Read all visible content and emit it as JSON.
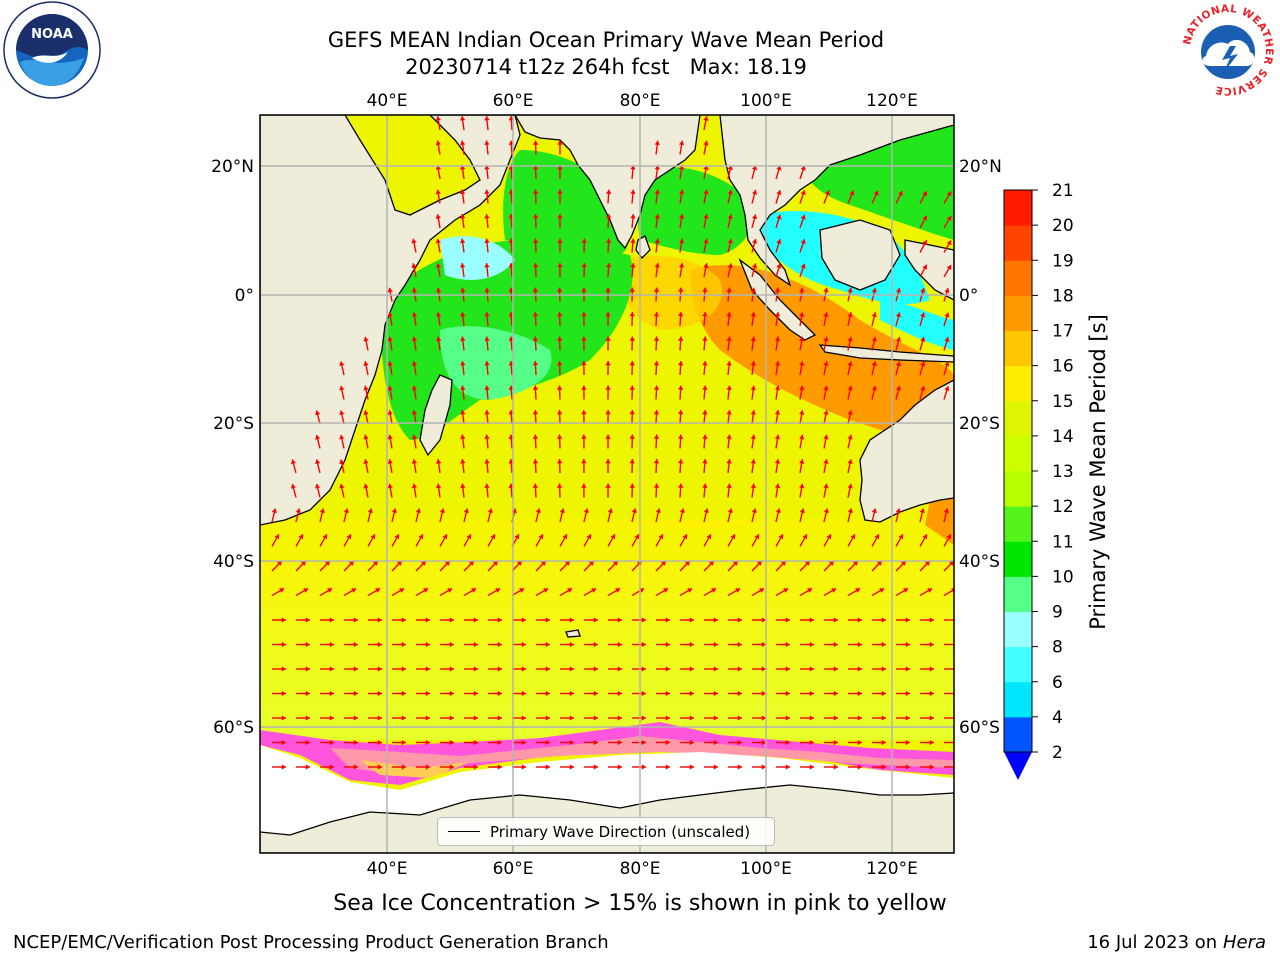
{
  "title": {
    "line1": "GEFS MEAN Indian Ocean Primary Wave Mean Period",
    "line2": "20230714 t12z 264h fcst   Max: 18.19"
  },
  "logos": {
    "left": {
      "icon": "noaa-logo",
      "text": "NOAA",
      "colors": {
        "navy": "#1b2f6b",
        "blue": "#1565c0",
        "light": "#3aa0e6"
      }
    },
    "right": {
      "icon": "nws-logo",
      "text": "NATIONAL WEATHER SERVICE",
      "colors": {
        "red": "#e8232a",
        "blue": "#1a5fb4"
      }
    }
  },
  "map": {
    "top_axis_labels": [
      "40°E",
      "60°E",
      "80°E",
      "100°E",
      "120°E"
    ],
    "bottom_axis_labels": [
      "40°E",
      "60°E",
      "80°E",
      "100°E",
      "120°E"
    ],
    "left_axis_labels": [
      "20°N",
      "0°",
      "20°S",
      "40°S",
      "60°S"
    ],
    "right_axis_labels": [
      "20°N",
      "0°",
      "20°S",
      "40°S",
      "60°S"
    ],
    "land_color": "#efedd9",
    "arrow_color": "#ff0000",
    "grid_color": "#b4b4b4",
    "ice_colors": [
      "#ff55dd",
      "#ff99aa",
      "#ffcc55",
      "#ff77ff"
    ]
  },
  "legend": {
    "label": "Primary Wave Direction (unscaled)"
  },
  "colorbar": {
    "title": "Primary Wave Mean Period [s]",
    "levels": [
      "2",
      "4",
      "6",
      "8",
      "9",
      "10",
      "11",
      "12",
      "13",
      "14",
      "15",
      "16",
      "17",
      "18",
      "19",
      "20",
      "21"
    ],
    "colors": [
      "#0055ff",
      "#00e6ff",
      "#44ffff",
      "#99ffff",
      "#55ff88",
      "#00e600",
      "#55f21b",
      "#b7ff00",
      "#ccff00",
      "#ddf500",
      "#ffee00",
      "#ffc700",
      "#ff9900",
      "#ff7700",
      "#ff4400",
      "#ff1a00"
    ],
    "under_color": "#0000ff"
  },
  "sea_ice_note": "Sea Ice Concentration > 15% is shown in pink to yellow",
  "footer": {
    "left": "NCEP/EMC/Verification Post Processing Product Generation Branch",
    "date": "16 Jul 2023 on ",
    "machine": "Hera"
  }
}
